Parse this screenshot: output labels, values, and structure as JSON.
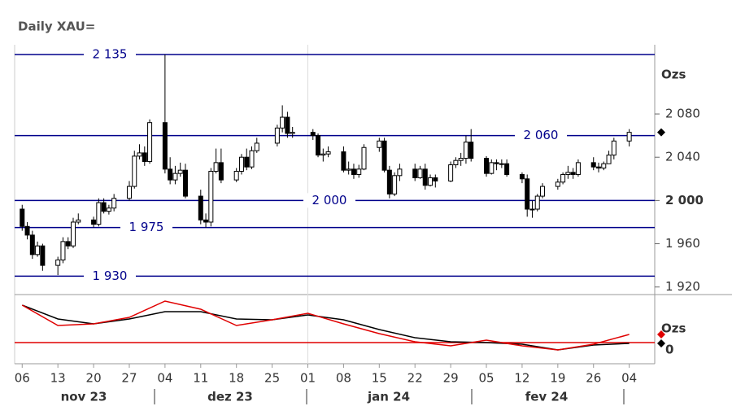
{
  "chart_data": [
    {
      "type": "candlestick",
      "title": "Daily XAU=",
      "y_label": "Ozs",
      "x": [
        "2023-11-06",
        "2023-11-07",
        "2023-11-08",
        "2023-11-09",
        "2023-11-10",
        "2023-11-13",
        "2023-11-14",
        "2023-11-15",
        "2023-11-16",
        "2023-11-17",
        "2023-11-20",
        "2023-11-21",
        "2023-11-22",
        "2023-11-23",
        "2023-11-24",
        "2023-11-27",
        "2023-11-28",
        "2023-11-29",
        "2023-11-30",
        "2023-12-01",
        "2023-12-04",
        "2023-12-05",
        "2023-12-06",
        "2023-12-07",
        "2023-12-08",
        "2023-12-11",
        "2023-12-12",
        "2023-12-13",
        "2023-12-14",
        "2023-12-15",
        "2023-12-18",
        "2023-12-19",
        "2023-12-20",
        "2023-12-21",
        "2023-12-22",
        "2023-12-26",
        "2023-12-27",
        "2023-12-28",
        "2023-12-29",
        "2024-01-02",
        "2024-01-03",
        "2024-01-04",
        "2024-01-05",
        "2024-01-08",
        "2024-01-09",
        "2024-01-10",
        "2024-01-11",
        "2024-01-12",
        "2024-01-15",
        "2024-01-16",
        "2024-01-17",
        "2024-01-18",
        "2024-01-19",
        "2024-01-22",
        "2024-01-23",
        "2024-01-24",
        "2024-01-25",
        "2024-01-26",
        "2024-01-29",
        "2024-01-30",
        "2024-01-31",
        "2024-02-01",
        "2024-02-02",
        "2024-02-05",
        "2024-02-06",
        "2024-02-07",
        "2024-02-08",
        "2024-02-09",
        "2024-02-12",
        "2024-02-13",
        "2024-02-14",
        "2024-02-15",
        "2024-02-16",
        "2024-02-19",
        "2024-02-20",
        "2024-02-21",
        "2024-02-22",
        "2024-02-23",
        "2024-02-26",
        "2024-02-27",
        "2024-02-28",
        "2024-02-29",
        "2024-03-01",
        "2024-03-04"
      ],
      "open": [
        1992,
        1976,
        1968,
        1950,
        1958,
        1940,
        1945,
        1962,
        1958,
        1980,
        1982,
        1978,
        1998,
        1990,
        1993,
        2002,
        2013,
        2041,
        2044,
        2036,
        2072,
        2029,
        2019,
        2025,
        2028,
        2004,
        1982,
        1980,
        2027,
        2035,
        2019,
        2027,
        2040,
        2031,
        2046,
        2053,
        2067,
        2077,
        2062,
        2063,
        2060,
        2042,
        2043,
        2045,
        2028,
        2029,
        2024,
        2029,
        2049,
        2055,
        2028,
        2006,
        2023,
        2029,
        2021,
        2029,
        2014,
        2021,
        2018,
        2033,
        2037,
        2039,
        2054,
        2039,
        2025,
        2035,
        2034,
        2034,
        2024,
        2020,
        1992,
        1992,
        2004,
        2013,
        2017,
        2024,
        2026,
        2024,
        2035,
        2031,
        2030,
        2034,
        2042,
        2055
      ],
      "high": [
        1996,
        1980,
        1972,
        1962,
        1960,
        1948,
        1966,
        1966,
        1984,
        1988,
        1985,
        2002,
        2002,
        1996,
        2006,
        2018,
        2046,
        2052,
        2050,
        2075,
        2135,
        2040,
        2032,
        2035,
        2034,
        2010,
        1988,
        2030,
        2048,
        2048,
        2030,
        2043,
        2048,
        2050,
        2058,
        2070,
        2088,
        2082,
        2068,
        2066,
        2062,
        2048,
        2050,
        2050,
        2036,
        2034,
        2033,
        2052,
        2058,
        2058,
        2032,
        2026,
        2034,
        2034,
        2032,
        2034,
        2024,
        2024,
        2036,
        2040,
        2044,
        2060,
        2066,
        2041,
        2038,
        2038,
        2038,
        2038,
        2026,
        2024,
        2000,
        2006,
        2016,
        2020,
        2026,
        2032,
        2030,
        2038,
        2040,
        2035,
        2036,
        2046,
        2058,
        2066
      ],
      "low": [
        1972,
        1964,
        1946,
        1948,
        1935,
        1931,
        1942,
        1955,
        1956,
        1978,
        1975,
        1976,
        1988,
        1987,
        1990,
        2000,
        2011,
        2038,
        2032,
        2034,
        2025,
        2015,
        2015,
        2022,
        2002,
        1978,
        1975,
        1976,
        2025,
        2016,
        2017,
        2024,
        2028,
        2029,
        2044,
        2050,
        2063,
        2058,
        2058,
        2056,
        2040,
        2036,
        2040,
        2026,
        2024,
        2020,
        2021,
        2028,
        2045,
        2026,
        2002,
        2004,
        2018,
        2018,
        2020,
        2010,
        2013,
        2012,
        2017,
        2030,
        2032,
        2034,
        2036,
        2022,
        2024,
        2028,
        2030,
        2022,
        2016,
        1985,
        1984,
        1990,
        2002,
        2010,
        2015,
        2020,
        2020,
        2022,
        2028,
        2026,
        2028,
        2034,
        2038,
        2050
      ],
      "close": [
        1976,
        1968,
        1950,
        1958,
        1940,
        1945,
        1962,
        1958,
        1980,
        1982,
        1978,
        1998,
        1990,
        1993,
        2002,
        2013,
        2041,
        2044,
        2036,
        2072,
        2029,
        2019,
        2025,
        2028,
        2004,
        1982,
        1980,
        2027,
        2035,
        2019,
        2027,
        2040,
        2031,
        2046,
        2053,
        2067,
        2077,
        2062,
        2063,
        2060,
        2042,
        2043,
        2045,
        2028,
        2029,
        2024,
        2029,
        2049,
        2055,
        2028,
        2006,
        2023,
        2029,
        2021,
        2029,
        2014,
        2021,
        2018,
        2033,
        2037,
        2039,
        2054,
        2039,
        2025,
        2035,
        2034,
        2034,
        2024,
        2020,
        1992,
        1992,
        2004,
        2013,
        2017,
        2024,
        2026,
        2024,
        2035,
        2031,
        2030,
        2034,
        2042,
        2055,
        2063
      ],
      "up_color": "#ffffff",
      "down_color": "#000000",
      "levels": [
        {
          "value": 2135,
          "label": "2 135"
        },
        {
          "value": 2060,
          "label": "2 060"
        },
        {
          "value": 2000,
          "label": "2 000"
        },
        {
          "value": 1975,
          "label": "1 975"
        },
        {
          "value": 1930,
          "label": "1 930"
        }
      ],
      "level_color": "#00008b",
      "ylim": [
        1913,
        2144
      ],
      "yticks": [
        {
          "value": 1920,
          "label": "1 920"
        },
        {
          "value": 1960,
          "label": "1 960"
        },
        {
          "value": 2000,
          "label": "2 000"
        },
        {
          "value": 2040,
          "label": "2 040"
        },
        {
          "value": 2080,
          "label": "2 080"
        }
      ],
      "xlim": [
        "2023-11-05",
        "2024-03-09"
      ],
      "xticks": [
        {
          "value": "2023-11-06",
          "label": "06"
        },
        {
          "value": "2023-11-13",
          "label": "13"
        },
        {
          "value": "2023-11-20",
          "label": "20"
        },
        {
          "value": "2023-11-27",
          "label": "27"
        },
        {
          "value": "2023-12-04",
          "label": "04"
        },
        {
          "value": "2023-12-11",
          "label": "11"
        },
        {
          "value": "2023-12-18",
          "label": "18"
        },
        {
          "value": "2023-12-25",
          "label": "25"
        },
        {
          "value": "2024-01-01",
          "label": "01"
        },
        {
          "value": "2024-01-08",
          "label": "08"
        },
        {
          "value": "2024-01-15",
          "label": "15"
        },
        {
          "value": "2024-01-22",
          "label": "22"
        },
        {
          "value": "2024-01-29",
          "label": "29"
        },
        {
          "value": "2024-02-05",
          "label": "05"
        },
        {
          "value": "2024-02-12",
          "label": "12"
        },
        {
          "value": "2024-02-19",
          "label": "19"
        },
        {
          "value": "2024-02-26",
          "label": "26"
        },
        {
          "value": "2024-03-04",
          "label": "04"
        }
      ],
      "month_labels": [
        "nov 23",
        "dez 23",
        "jan 24",
        "fev 24"
      ]
    },
    {
      "type": "line",
      "y_label": "Ozs",
      "x": [
        "2023-11-06",
        "2023-11-13",
        "2023-11-20",
        "2023-11-27",
        "2023-12-04",
        "2023-12-11",
        "2023-12-18",
        "2023-12-25",
        "2024-01-01",
        "2024-01-08",
        "2024-01-15",
        "2024-01-22",
        "2024-01-29",
        "2024-02-05",
        "2024-02-12",
        "2024-02-19",
        "2024-02-26",
        "2024-03-04"
      ],
      "series": [
        {
          "color": "#000000",
          "values": [
            23,
            14.5,
            11.5,
            14.5,
            19,
            19,
            14.5,
            14,
            17,
            14,
            8,
            3,
            0.5,
            0,
            -1,
            -4.5,
            -1.5,
            -0.5
          ]
        },
        {
          "color": "#e00000",
          "values": [
            23,
            10.5,
            11.5,
            15.5,
            25.5,
            20.5,
            10.5,
            14,
            18,
            11.5,
            5.5,
            0.5,
            -2,
            1.5,
            -2,
            -4.5,
            -1,
            5
          ]
        }
      ],
      "baseline_color": "#e00000",
      "ylim": [
        -10,
        28
      ],
      "yticks": [
        0
      ]
    }
  ]
}
